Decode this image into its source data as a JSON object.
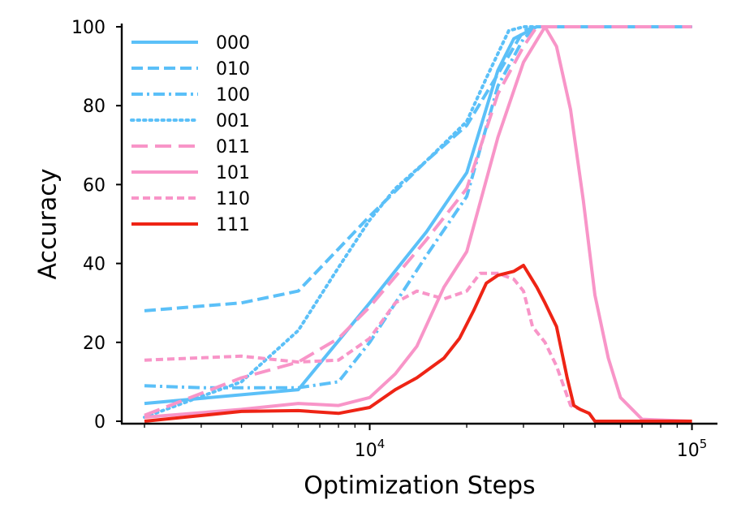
{
  "chart_data": {
    "type": "line",
    "title": "",
    "xlabel": "Optimization Steps",
    "ylabel": "Accuracy",
    "xscale": "log",
    "xlim": [
      1700,
      120000
    ],
    "ylim": [
      0,
      100
    ],
    "yticks": [
      0,
      20,
      40,
      60,
      80,
      100
    ],
    "xticks": [
      {
        "value": 10000,
        "base": "10",
        "exp": "4"
      },
      {
        "value": 100000,
        "base": "10",
        "exp": "5"
      }
    ],
    "legend_position": "top-left",
    "grid": false,
    "series": [
      {
        "name": "000",
        "color": "#5bc0f8",
        "style": "solid",
        "x": [
          2000,
          6000,
          10000,
          15000,
          20000,
          25000,
          28000,
          33000,
          40000,
          60000,
          100000
        ],
        "y": [
          4.5,
          8,
          30,
          48,
          63,
          89,
          97,
          100,
          100,
          100,
          100
        ]
      },
      {
        "name": "010",
        "color": "#5bc0f8",
        "style": "dashed",
        "x": [
          2000,
          4000,
          6000,
          10000,
          15000,
          20000,
          25000,
          30000,
          33000,
          40000,
          60000,
          100000
        ],
        "y": [
          28,
          30,
          33,
          52,
          66,
          75,
          88,
          99,
          100,
          100,
          100,
          100
        ]
      },
      {
        "name": "100",
        "color": "#5bc0f8",
        "style": "dashdot",
        "x": [
          2000,
          3000,
          6000,
          8000,
          10000,
          15000,
          20000,
          25000,
          30000,
          33000,
          40000,
          60000,
          100000
        ],
        "y": [
          9,
          8.5,
          8.5,
          10,
          20,
          42,
          57,
          85,
          97,
          100,
          100,
          100,
          100
        ]
      },
      {
        "name": "001",
        "color": "#5bc0f8",
        "style": "dotted",
        "x": [
          2000,
          4000,
          6000,
          8000,
          10000,
          12000,
          15000,
          20000,
          23000,
          27000,
          30000,
          33000,
          40000,
          60000,
          100000
        ],
        "y": [
          1,
          10,
          23,
          39,
          51,
          59,
          66,
          76,
          87,
          99,
          100,
          100,
          100,
          100,
          100
        ]
      },
      {
        "name": "011",
        "color": "#f895c8",
        "style": "longdash",
        "x": [
          2000,
          4000,
          6000,
          8000,
          10000,
          15000,
          20000,
          25000,
          30000,
          33000,
          40000,
          60000,
          100000
        ],
        "y": [
          1.5,
          11,
          15,
          21,
          29,
          46,
          59,
          83,
          95,
          100,
          100,
          100,
          100
        ]
      },
      {
        "name": "101",
        "color": "#f895c8",
        "style": "solid",
        "x": [
          2000,
          4000,
          6000,
          8000,
          10000,
          12000,
          14000,
          17000,
          20000,
          25000,
          30000,
          35000,
          38000,
          42000,
          46000,
          50000,
          55000,
          60000,
          70000,
          100000
        ],
        "y": [
          1,
          3,
          4.5,
          4,
          6,
          12,
          19,
          34,
          43,
          72,
          91,
          100,
          95,
          79,
          56,
          32,
          16,
          6,
          0.5,
          0
        ]
      },
      {
        "name": "110",
        "color": "#f895c8",
        "style": "shortdash",
        "x": [
          2000,
          4000,
          6000,
          8000,
          10000,
          12000,
          14000,
          17000,
          20000,
          22000,
          25000,
          28000,
          30000,
          32000,
          35000,
          38000,
          42000,
          45000,
          48000,
          50000,
          60000,
          100000
        ],
        "y": [
          15.5,
          16.5,
          15,
          15.5,
          21,
          30,
          33,
          31,
          33,
          37.5,
          37.5,
          36,
          33,
          24,
          20,
          14,
          4,
          3,
          2,
          0,
          0,
          0
        ]
      },
      {
        "name": "111",
        "color": "#ee2415",
        "style": "solid",
        "x": [
          2000,
          4000,
          6000,
          8000,
          10000,
          12000,
          14000,
          17000,
          19000,
          21000,
          23000,
          25000,
          28000,
          30000,
          33000,
          35000,
          38000,
          41000,
          43000,
          45000,
          48000,
          50000,
          60000,
          100000
        ],
        "y": [
          0,
          2.5,
          2.7,
          2,
          3.5,
          8,
          11,
          16,
          21,
          28,
          35,
          37,
          38,
          39.5,
          34,
          30,
          24,
          11,
          4,
          3,
          2,
          0,
          0,
          0
        ]
      }
    ]
  }
}
